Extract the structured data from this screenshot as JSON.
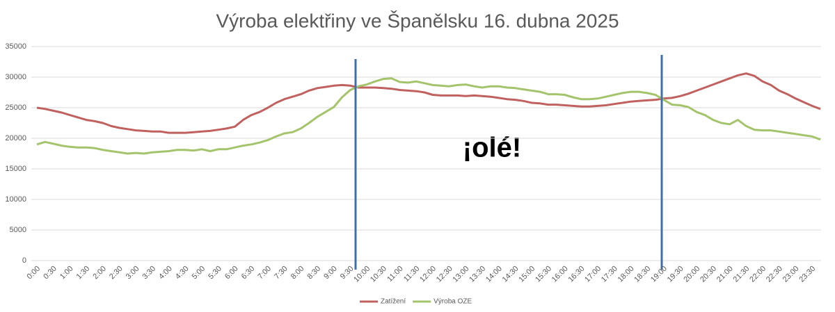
{
  "chart_data": {
    "type": "line",
    "title": "Výroba elektřiny ve Španělsku 16. dubna 2025",
    "annotations": [
      "¡olé!"
    ],
    "categories": [
      "0:00",
      null,
      "0:30",
      null,
      "1:00",
      null,
      "1:30",
      null,
      "2:00",
      null,
      "2:30",
      null,
      "3:00",
      null,
      "3:30",
      null,
      "4:00",
      null,
      "4:30",
      null,
      "5:00",
      null,
      "5:30",
      null,
      "6:00",
      null,
      "6:30",
      null,
      "7:00",
      null,
      "7:30",
      null,
      "8:00",
      null,
      "8:30",
      null,
      "9:00",
      null,
      "9:30",
      null,
      "10:00",
      null,
      "10:30",
      null,
      "11:00",
      null,
      "11:30",
      null,
      "12:00",
      null,
      "12:30",
      null,
      "13:00",
      null,
      "13:30",
      null,
      "14:00",
      null,
      "14:30",
      null,
      "15:00",
      null,
      "15:30",
      null,
      "16:00",
      null,
      "16:30",
      null,
      "17:00",
      null,
      "17:30",
      null,
      "18:00",
      null,
      "18:30",
      null,
      "19:00",
      null,
      "19:30",
      null,
      "20:00",
      null,
      "20:30",
      null,
      "21:00",
      null,
      "21:30",
      null,
      "22:00",
      null,
      "22:30",
      null,
      "23:00",
      null,
      "23:30",
      null
    ],
    "series": [
      {
        "name": "Zatížení",
        "color": "#c0605f",
        "values": [
          25000,
          24800,
          24500,
          24200,
          23800,
          23400,
          23000,
          22800,
          22500,
          22000,
          21700,
          21500,
          21300,
          21200,
          21100,
          21100,
          20900,
          20900,
          20900,
          21000,
          21100,
          21200,
          21400,
          21600,
          21900,
          23000,
          23800,
          24300,
          25000,
          25800,
          26400,
          26800,
          27200,
          27800,
          28200,
          28400,
          28600,
          28700,
          28600,
          28300,
          28300,
          28300,
          28200,
          28100,
          27900,
          27800,
          27700,
          27500,
          27100,
          27000,
          27000,
          27000,
          26900,
          27000,
          26900,
          26800,
          26600,
          26400,
          26300,
          26100,
          25800,
          25700,
          25500,
          25500,
          25400,
          25300,
          25200,
          25200,
          25300,
          25400,
          25600,
          25800,
          26000,
          26100,
          26200,
          26300,
          26500,
          26600,
          26900,
          27300,
          27800,
          28300,
          28800,
          29300,
          29800,
          30300,
          30600,
          30200,
          29300,
          28700,
          27800,
          27200,
          26500,
          25900,
          25300,
          24800
        ]
      },
      {
        "name": "Výroba OZE",
        "color": "#a4c46b",
        "values": [
          19000,
          19400,
          19100,
          18800,
          18600,
          18500,
          18500,
          18400,
          18100,
          17900,
          17700,
          17500,
          17600,
          17500,
          17700,
          17800,
          17900,
          18100,
          18100,
          18000,
          18200,
          17900,
          18200,
          18200,
          18500,
          18800,
          19000,
          19300,
          19700,
          20300,
          20800,
          21000,
          21600,
          22500,
          23500,
          24300,
          25100,
          26700,
          27900,
          28500,
          28800,
          29300,
          29700,
          29800,
          29200,
          29100,
          29300,
          29000,
          28700,
          28600,
          28500,
          28700,
          28800,
          28500,
          28300,
          28500,
          28500,
          28300,
          28200,
          28000,
          27800,
          27600,
          27200,
          27200,
          27100,
          26700,
          26400,
          26400,
          26500,
          26800,
          27100,
          27400,
          27600,
          27600,
          27400,
          27100,
          26300,
          25500,
          25400,
          25100,
          24300,
          23800,
          23000,
          22500,
          22300,
          23000,
          22000,
          21400,
          21300,
          21300,
          21100,
          20900,
          20700,
          20500,
          20300,
          19800
        ]
      }
    ],
    "ylim": [
      0,
      35000
    ],
    "yticks": [
      0,
      5000,
      10000,
      15000,
      20000,
      25000,
      30000,
      35000
    ],
    "grid": true,
    "legend": "bottom"
  }
}
